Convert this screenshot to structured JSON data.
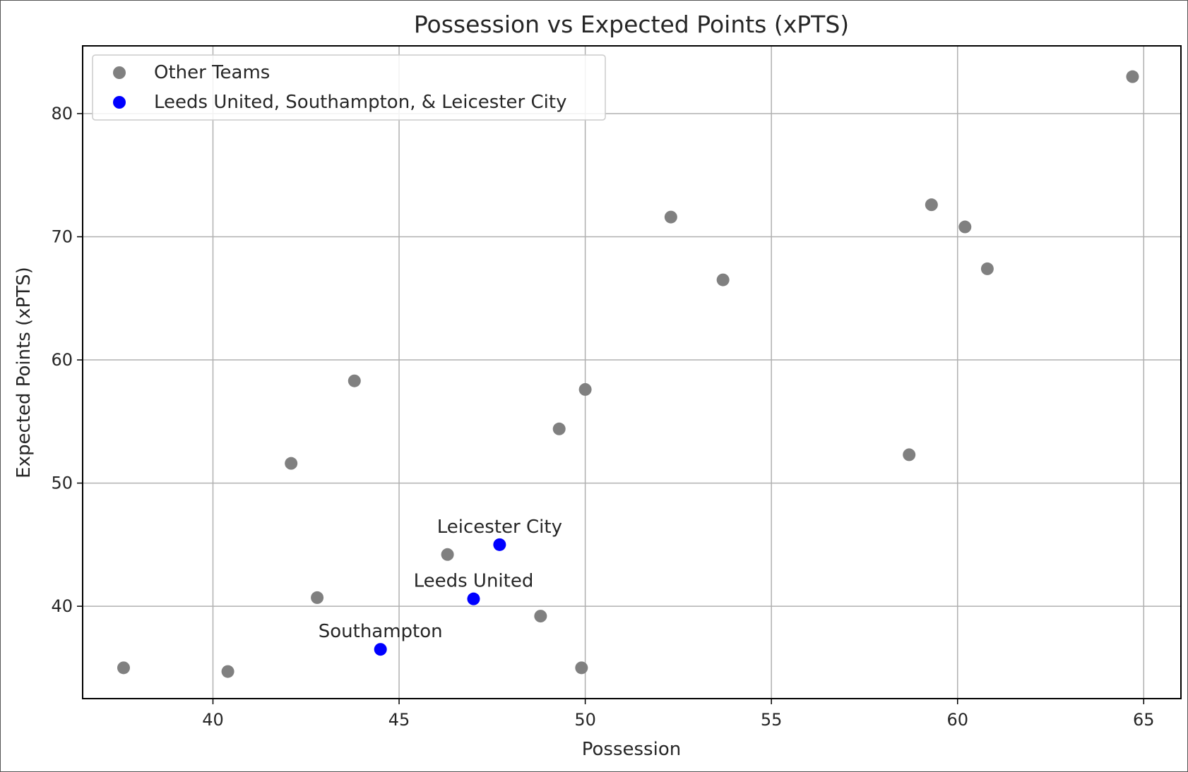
{
  "chart_data": {
    "type": "scatter",
    "title": "Possession vs Expected Points (xPTS)",
    "xlabel": "Possession",
    "ylabel": "Expected Points (xPTS)",
    "xlim": [
      36.5,
      66.0
    ],
    "ylim": [
      32.5,
      85.5
    ],
    "xticks": [
      40,
      45,
      50,
      55,
      60,
      65
    ],
    "yticks": [
      40,
      50,
      60,
      70,
      80
    ],
    "grid": true,
    "legend_position": "top-left",
    "series": [
      {
        "name": "Other Teams",
        "color": "#808080",
        "points": [
          {
            "x": 37.6,
            "y": 35.0
          },
          {
            "x": 40.4,
            "y": 34.7
          },
          {
            "x": 42.1,
            "y": 51.6
          },
          {
            "x": 42.8,
            "y": 40.7
          },
          {
            "x": 43.8,
            "y": 58.3
          },
          {
            "x": 46.3,
            "y": 44.2
          },
          {
            "x": 48.8,
            "y": 39.2
          },
          {
            "x": 49.3,
            "y": 54.4
          },
          {
            "x": 49.9,
            "y": 35.0
          },
          {
            "x": 50.0,
            "y": 57.6
          },
          {
            "x": 52.3,
            "y": 71.6
          },
          {
            "x": 53.7,
            "y": 66.5
          },
          {
            "x": 58.7,
            "y": 52.3
          },
          {
            "x": 59.3,
            "y": 72.6
          },
          {
            "x": 60.2,
            "y": 70.8
          },
          {
            "x": 60.8,
            "y": 67.4
          },
          {
            "x": 64.7,
            "y": 83.0
          }
        ]
      },
      {
        "name": "Leeds United, Southampton, & Leicester City",
        "color": "#0000ff",
        "points": [
          {
            "x": 47.7,
            "y": 45.0,
            "label": "Leicester City"
          },
          {
            "x": 47.0,
            "y": 40.6,
            "label": "Leeds United"
          },
          {
            "x": 44.5,
            "y": 36.5,
            "label": "Southampton"
          }
        ]
      }
    ]
  }
}
